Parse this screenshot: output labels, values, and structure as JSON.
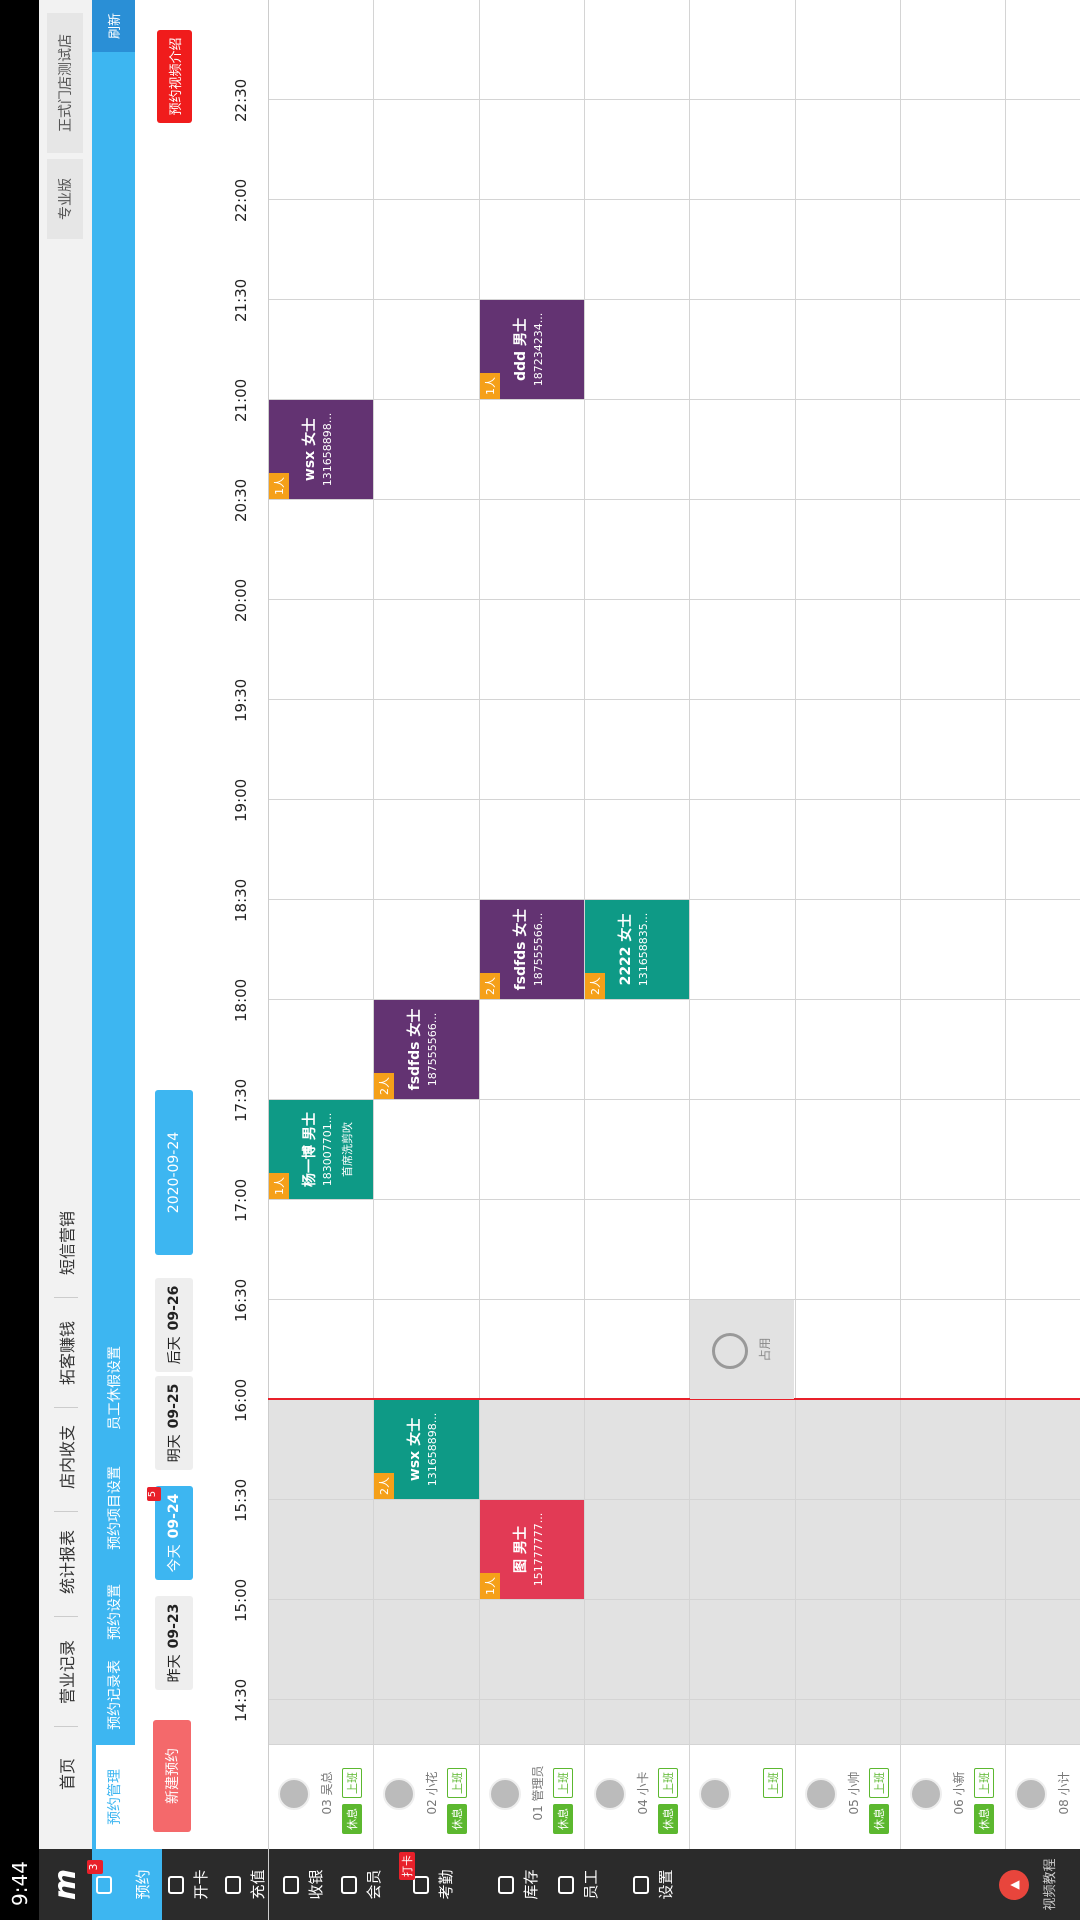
{
  "status_bar": {
    "time": "9:44"
  },
  "sidebar": {
    "badge": "3",
    "items": [
      "预约",
      "开卡",
      "充值",
      "收银",
      "会员",
      "考勤",
      "库存",
      "员工",
      "设置"
    ],
    "attendance_badge": "打卡",
    "video": "视频教程"
  },
  "top_nav": {
    "tabs": [
      "首页",
      "营业记录",
      "统计报表",
      "店内收支",
      "拓客赚钱",
      "短信营销"
    ],
    "edition": "专业版",
    "store": "正式门店测试店"
  },
  "sub_nav": {
    "tabs": [
      "预约管理",
      "预约记录表",
      "预约设置",
      "预约项目设置",
      "员工休假设置"
    ],
    "refresh": "刷新"
  },
  "toolbar": {
    "new": "新建预约",
    "days": [
      {
        "label": "昨天",
        "date": "09-23"
      },
      {
        "label": "今天",
        "date": "09-24"
      },
      {
        "label": "明天",
        "date": "09-25"
      },
      {
        "label": "后天",
        "date": "09-26"
      }
    ],
    "today_badge": "5",
    "date": "2020-09-24",
    "video_intro": "预约视频介绍"
  },
  "times": [
    "14:30",
    "15:00",
    "15:30",
    "16:00",
    "16:30",
    "17:00",
    "17:30",
    "18:00",
    "18:30",
    "19:00",
    "19:30",
    "20:00",
    "20:30",
    "21:00",
    "21:30",
    "22:00",
    "22:30"
  ],
  "staff": [
    {
      "name": "03 吴总",
      "rest": "休息",
      "work": "上班"
    },
    {
      "name": "02 小花",
      "rest": "休息",
      "work": "上班"
    },
    {
      "name": "01 管理员",
      "rest": "休息",
      "work": "上班"
    },
    {
      "name": "04 小卡",
      "rest": "休息",
      "work": "上班"
    },
    {
      "work": "上班"
    },
    {
      "name": "05 小帅",
      "rest": "休息",
      "work": "上班"
    },
    {
      "name": "06 小新",
      "rest": "休息",
      "work": "上班"
    },
    {
      "name": "08 小计"
    }
  ],
  "occupied": "占用",
  "appointments": [
    {
      "count": "1人",
      "name": "杨一博 男士",
      "phone": "183007701...",
      "service": "首席洗剪吹"
    },
    {
      "count": "1人",
      "name": "wsx 女士",
      "phone": "131658898..."
    },
    {
      "count": "2人",
      "name": "wsx 女士",
      "phone": "131658898..."
    },
    {
      "count": "2人",
      "name": "fsdfds 女士",
      "phone": "187555566..."
    },
    {
      "count": "1人",
      "name": "图 男士",
      "phone": "151777777..."
    },
    {
      "count": "2人",
      "name": "fsdfds 女士",
      "phone": "187555566..."
    },
    {
      "count": "1人",
      "name": "ddd 男士",
      "phone": "187234234..."
    },
    {
      "count": "2人",
      "name": "2222 女士",
      "phone": "131658835..."
    }
  ]
}
